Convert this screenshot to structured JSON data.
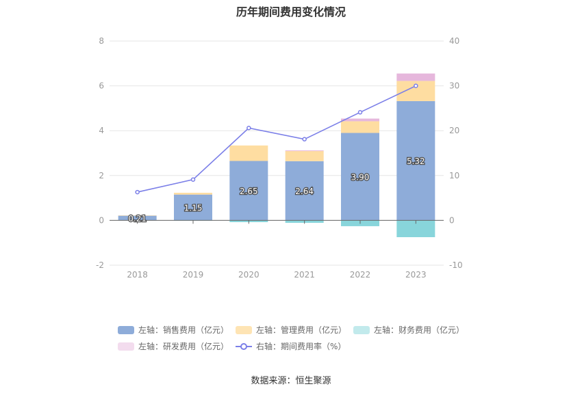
{
  "chart_data": {
    "type": "bar",
    "title": "历年期间费用变化情况",
    "categories": [
      "2018",
      "2019",
      "2020",
      "2021",
      "2022",
      "2023"
    ],
    "left_axis": {
      "ylim": [
        -2,
        8
      ],
      "ticks": [
        "-2",
        "0",
        "2",
        "4",
        "6",
        "8"
      ]
    },
    "right_axis": {
      "ylim": [
        -10,
        40
      ],
      "ticks": [
        "-10",
        "0",
        "10",
        "20",
        "30",
        "40"
      ]
    },
    "series": [
      {
        "name": "左轴：销售费用（亿元）",
        "color": "#8eacd9",
        "axis": "left",
        "stack": "expense",
        "values": [
          0.21,
          1.15,
          2.65,
          2.64,
          3.9,
          5.32
        ],
        "labels": [
          "0.21",
          "1.15",
          "2.65",
          "2.64",
          "3.90",
          "5.32"
        ]
      },
      {
        "name": "左轴：管理费用（亿元）",
        "color": "#fedda1",
        "axis": "left",
        "stack": "expense",
        "values": [
          0.01,
          0.08,
          0.69,
          0.45,
          0.52,
          0.9
        ]
      },
      {
        "name": "左轴：财务费用（亿元）",
        "color": "#88d5db",
        "axis": "left",
        "stack": "expense",
        "values": [
          0.0,
          -0.01,
          -0.08,
          -0.11,
          -0.26,
          -0.75
        ]
      },
      {
        "name": "左轴：研发费用（亿元）",
        "color": "#e6b7dc",
        "axis": "left",
        "stack": "expense",
        "values": [
          0.0,
          0.0,
          0.0,
          0.03,
          0.12,
          0.33
        ]
      },
      {
        "name": "右轴：期间费用率（%）",
        "color": "#7b7fe8",
        "axis": "right",
        "kind": "line",
        "values": [
          6.3,
          9.1,
          20.6,
          18.1,
          24.1,
          30.0
        ]
      }
    ],
    "grid": true,
    "legend_position": "bottom"
  },
  "source_text": "数据来源：恒生聚源"
}
